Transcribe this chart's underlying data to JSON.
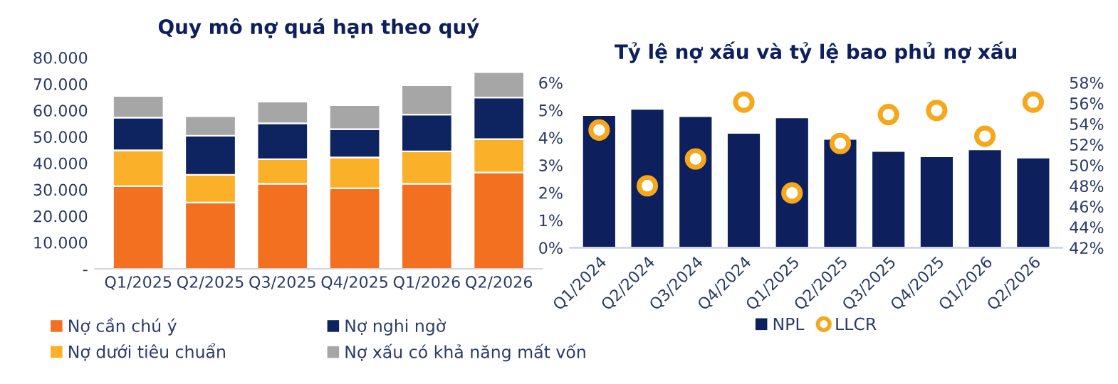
{
  "chart_data": [
    {
      "type": "bar",
      "title": "Quy mô nợ quá hạn theo quý",
      "stacked": true,
      "categories": [
        "Q1/2025",
        "Q2/2025",
        "Q3/2025",
        "Q4/2025",
        "Q1/2026",
        "Q2/2026"
      ],
      "series": [
        {
          "name": "Nợ cần chú ý",
          "color": "#f37021",
          "values": [
            31300,
            25100,
            32200,
            30500,
            32200,
            36500
          ]
        },
        {
          "name": "Nợ dưới tiêu chuẩn",
          "color": "#fbb02a",
          "values": [
            13600,
            10500,
            9300,
            11700,
            12300,
            12600
          ]
        },
        {
          "name": "Nợ nghi ngờ",
          "color": "#0d2461",
          "values": [
            12400,
            14800,
            13600,
            10700,
            13900,
            15800
          ]
        },
        {
          "name": "Nợ xấu có khả năng mất vốn",
          "color": "#a6a6a6",
          "values": [
            8200,
            7400,
            8200,
            9100,
            11100,
            9600
          ]
        }
      ],
      "ylim": [
        0,
        80000
      ],
      "yticks": [
        {
          "value": 0,
          "label": "-"
        },
        {
          "value": 10000,
          "label": "10.000"
        },
        {
          "value": 20000,
          "label": "20.000"
        },
        {
          "value": 30000,
          "label": "30.000"
        },
        {
          "value": 40000,
          "label": "40.000"
        },
        {
          "value": 50000,
          "label": "50.000"
        },
        {
          "value": 60000,
          "label": "60.000"
        },
        {
          "value": 70000,
          "label": "70.000"
        },
        {
          "value": 80000,
          "label": "80.000"
        }
      ],
      "grid": false,
      "legend": "bottom"
    },
    {
      "type": "bar",
      "title": "Tỷ lệ nợ xấu và tỷ lệ bao phủ nợ xấu",
      "categories": [
        "Q1/2024",
        "Q2/2024",
        "Q3/2024",
        "Q4/2024",
        "Q1/2025",
        "Q2/2025",
        "Q3/2025",
        "Q4/2025",
        "Q1/2026",
        "Q2/2026"
      ],
      "series": [
        {
          "name": "NPL",
          "type": "bar",
          "color": "#0d1f5c",
          "values": [
            4.82,
            5.04,
            4.78,
            4.17,
            4.73,
            3.95,
            3.51,
            3.32,
            3.57,
            3.27
          ]
        },
        {
          "name": "LLCR",
          "type": "scatter",
          "axis": "y2",
          "marker": "circle",
          "color": "#f5a81c",
          "values": [
            53.4,
            48.0,
            50.6,
            56.1,
            47.3,
            52.1,
            54.9,
            55.3,
            52.8,
            56.1
          ]
        }
      ],
      "ylim": [
        0,
        6
      ],
      "yticks": [
        {
          "value": 0,
          "label": "0%"
        },
        {
          "value": 1,
          "label": "1%"
        },
        {
          "value": 2,
          "label": "2%"
        },
        {
          "value": 3,
          "label": "3%"
        },
        {
          "value": 4,
          "label": "4%"
        },
        {
          "value": 5,
          "label": "5%"
        },
        {
          "value": 6,
          "label": "6%"
        }
      ],
      "y2lim": [
        42,
        58
      ],
      "y2ticks": [
        {
          "value": 42,
          "label": "42%"
        },
        {
          "value": 44,
          "label": "44%"
        },
        {
          "value": 46,
          "label": "46%"
        },
        {
          "value": 48,
          "label": "48%"
        },
        {
          "value": 50,
          "label": "50%"
        },
        {
          "value": 52,
          "label": "52%"
        },
        {
          "value": 54,
          "label": "54%"
        },
        {
          "value": 56,
          "label": "56%"
        },
        {
          "value": 58,
          "label": "58%"
        }
      ],
      "grid": false,
      "legend": "bottom"
    }
  ]
}
